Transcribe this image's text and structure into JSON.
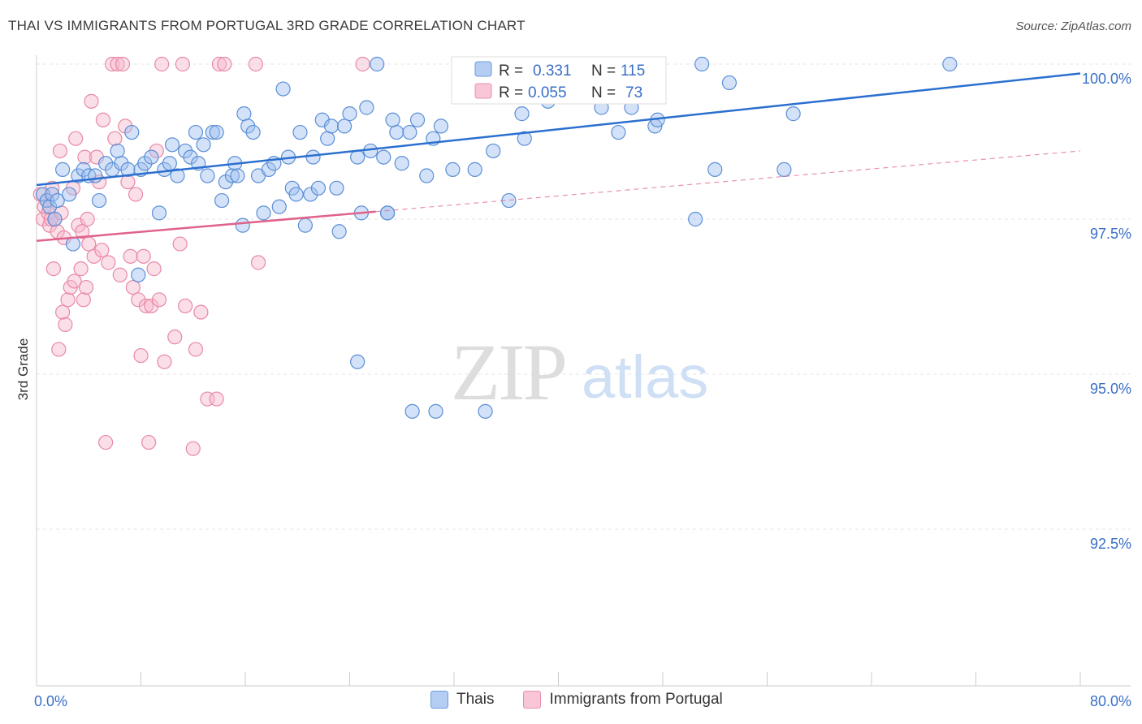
{
  "title": "THAI VS IMMIGRANTS FROM PORTUGAL 3RD GRADE CORRELATION CHART",
  "source": "Source: ZipAtlas.com",
  "watermark": {
    "zip": "ZIP",
    "atlas": "atlas"
  },
  "legend_box": {
    "rows": [
      {
        "r_label": "R =",
        "r_value": "0.331",
        "n_label": "N =",
        "n_value": "115"
      },
      {
        "r_label": "R =",
        "r_value": "0.055",
        "n_label": "N =",
        "n_value": "73"
      }
    ]
  },
  "legend_bottom": {
    "thais": "Thais",
    "portugal": "Immigrants from Portugal"
  },
  "colors": {
    "thais_fill": "#9dbfef",
    "thais_stroke": "#5b8fd6",
    "thais_line": "#2b6fcf",
    "portugal_fill": "#f6b8cb",
    "portugal_stroke": "#e889a6",
    "portugal_line": "#e0628a",
    "axis_text": "#3a6fc8",
    "grid": "#e6e6e6"
  },
  "chart_data": {
    "type": "scatter",
    "title": "THAI VS IMMIGRANTS FROM PORTUGAL 3RD GRADE CORRELATION CHART",
    "xlabel": "",
    "ylabel": "3rd Grade",
    "xlim": [
      0,
      80
    ],
    "ylim": [
      90.0,
      100.5
    ],
    "x_tick_labels": [
      {
        "value": 0,
        "label": "0.0%"
      },
      {
        "value": 80,
        "label": "80.0%"
      }
    ],
    "y_tick_labels": [
      {
        "value": 100.0,
        "label": "100.0%"
      },
      {
        "value": 97.5,
        "label": "97.5%"
      },
      {
        "value": 95.0,
        "label": "95.0%"
      },
      {
        "value": 92.5,
        "label": "92.5%"
      }
    ],
    "grid": true,
    "series": [
      {
        "name": "Thais",
        "trend": [
          [
            0,
            98.05
          ],
          [
            80,
            99.85
          ]
        ],
        "points": [
          [
            0.5,
            97.9
          ],
          [
            0.8,
            97.8
          ],
          [
            1.0,
            97.7
          ],
          [
            1.2,
            97.9
          ],
          [
            1.4,
            97.5
          ],
          [
            1.6,
            97.8
          ],
          [
            2.0,
            98.3
          ],
          [
            2.5,
            97.9
          ],
          [
            2.8,
            97.1
          ],
          [
            3.2,
            98.2
          ],
          [
            3.6,
            98.3
          ],
          [
            4.0,
            98.2
          ],
          [
            4.5,
            98.2
          ],
          [
            4.8,
            97.8
          ],
          [
            5.3,
            98.4
          ],
          [
            5.8,
            98.3
          ],
          [
            6.2,
            98.6
          ],
          [
            6.5,
            98.4
          ],
          [
            7.0,
            98.3
          ],
          [
            7.3,
            98.9
          ],
          [
            7.8,
            96.6
          ],
          [
            8.0,
            98.3
          ],
          [
            8.3,
            98.4
          ],
          [
            8.8,
            98.5
          ],
          [
            9.4,
            97.6
          ],
          [
            9.8,
            98.3
          ],
          [
            10.2,
            98.4
          ],
          [
            10.4,
            98.7
          ],
          [
            10.8,
            98.2
          ],
          [
            11.4,
            98.6
          ],
          [
            11.8,
            98.5
          ],
          [
            12.2,
            98.9
          ],
          [
            12.4,
            98.4
          ],
          [
            12.8,
            98.7
          ],
          [
            13.1,
            98.2
          ],
          [
            13.5,
            98.9
          ],
          [
            13.8,
            98.9
          ],
          [
            14.2,
            97.8
          ],
          [
            14.5,
            98.1
          ],
          [
            15.0,
            98.2
          ],
          [
            15.2,
            98.4
          ],
          [
            15.8,
            97.4
          ],
          [
            15.9,
            99.2
          ],
          [
            16.2,
            99.0
          ],
          [
            16.6,
            98.9
          ],
          [
            17.0,
            98.2
          ],
          [
            17.4,
            97.6
          ],
          [
            17.8,
            98.3
          ],
          [
            18.2,
            98.4
          ],
          [
            18.6,
            97.7
          ],
          [
            18.9,
            99.6
          ],
          [
            19.3,
            98.5
          ],
          [
            19.6,
            98.0
          ],
          [
            19.9,
            97.9
          ],
          [
            20.2,
            98.9
          ],
          [
            20.6,
            97.4
          ],
          [
            21.0,
            97.9
          ],
          [
            21.2,
            98.5
          ],
          [
            21.6,
            98.0
          ],
          [
            21.9,
            99.1
          ],
          [
            22.3,
            98.8
          ],
          [
            22.6,
            99.0
          ],
          [
            23.0,
            98.0
          ],
          [
            23.2,
            97.3
          ],
          [
            23.6,
            99.0
          ],
          [
            24.0,
            99.2
          ],
          [
            24.6,
            98.5
          ],
          [
            24.9,
            97.6
          ],
          [
            25.3,
            99.3
          ],
          [
            25.6,
            98.6
          ],
          [
            26.1,
            100.0
          ],
          [
            26.6,
            98.5
          ],
          [
            26.9,
            97.6
          ],
          [
            27.3,
            99.1
          ],
          [
            27.6,
            98.9
          ],
          [
            28.0,
            98.4
          ],
          [
            28.6,
            98.9
          ],
          [
            29.2,
            99.1
          ],
          [
            29.9,
            98.2
          ],
          [
            30.4,
            98.8
          ],
          [
            31.0,
            99.0
          ],
          [
            31.9,
            98.3
          ],
          [
            32.4,
            100.0
          ],
          [
            32.6,
            99.8
          ],
          [
            33.1,
            100.0
          ],
          [
            33.6,
            98.3
          ],
          [
            34.4,
            99.8
          ],
          [
            35.0,
            98.6
          ],
          [
            35.3,
            99.5
          ],
          [
            36.2,
            97.8
          ],
          [
            37.2,
            99.2
          ],
          [
            37.4,
            98.8
          ],
          [
            38.0,
            100.0
          ],
          [
            39.2,
            99.4
          ],
          [
            39.6,
            99.5
          ],
          [
            40.0,
            100.0
          ],
          [
            41.8,
            100.0
          ],
          [
            43.3,
            99.3
          ],
          [
            44.6,
            98.9
          ],
          [
            45.6,
            99.3
          ],
          [
            47.4,
            99.0
          ],
          [
            47.6,
            99.1
          ],
          [
            50.5,
            97.5
          ],
          [
            51.0,
            100.0
          ],
          [
            52.0,
            98.3
          ],
          [
            53.1,
            99.7
          ],
          [
            57.3,
            98.3
          ],
          [
            58.0,
            99.2
          ],
          [
            70.0,
            100.0
          ],
          [
            24.6,
            95.2
          ],
          [
            28.8,
            94.4
          ],
          [
            30.6,
            94.4
          ],
          [
            34.4,
            94.4
          ],
          [
            26.9,
            97.6
          ],
          [
            15.4,
            98.2
          ]
        ]
      },
      {
        "name": "Immigrants from Portugal",
        "trend": [
          [
            0,
            97.15
          ],
          [
            80,
            98.6
          ]
        ],
        "dashed_from_x": 26,
        "points": [
          [
            0.3,
            97.9
          ],
          [
            0.5,
            97.5
          ],
          [
            0.6,
            97.7
          ],
          [
            0.8,
            97.8
          ],
          [
            0.9,
            97.6
          ],
          [
            1.0,
            97.4
          ],
          [
            1.1,
            97.5
          ],
          [
            1.2,
            98.0
          ],
          [
            1.3,
            96.7
          ],
          [
            1.4,
            97.5
          ],
          [
            1.6,
            97.3
          ],
          [
            1.7,
            95.4
          ],
          [
            1.8,
            98.6
          ],
          [
            1.9,
            97.6
          ],
          [
            2.0,
            96.0
          ],
          [
            2.1,
            97.2
          ],
          [
            2.2,
            95.8
          ],
          [
            2.4,
            96.2
          ],
          [
            2.6,
            96.4
          ],
          [
            2.8,
            98.0
          ],
          [
            2.9,
            96.5
          ],
          [
            3.0,
            98.8
          ],
          [
            3.2,
            97.4
          ],
          [
            3.4,
            96.7
          ],
          [
            3.5,
            97.3
          ],
          [
            3.6,
            96.2
          ],
          [
            3.7,
            98.5
          ],
          [
            3.8,
            96.4
          ],
          [
            3.9,
            97.5
          ],
          [
            4.0,
            97.1
          ],
          [
            4.2,
            99.4
          ],
          [
            4.4,
            96.9
          ],
          [
            4.6,
            98.5
          ],
          [
            4.8,
            98.1
          ],
          [
            5.0,
            97.0
          ],
          [
            5.1,
            99.1
          ],
          [
            5.3,
            93.9
          ],
          [
            5.5,
            96.8
          ],
          [
            5.8,
            100.0
          ],
          [
            6.0,
            98.8
          ],
          [
            6.2,
            100.0
          ],
          [
            6.4,
            96.6
          ],
          [
            6.6,
            100.0
          ],
          [
            6.8,
            99.0
          ],
          [
            7.0,
            98.1
          ],
          [
            7.2,
            96.9
          ],
          [
            7.4,
            96.4
          ],
          [
            7.6,
            97.9
          ],
          [
            7.8,
            96.2
          ],
          [
            8.0,
            95.3
          ],
          [
            8.2,
            96.9
          ],
          [
            8.4,
            96.1
          ],
          [
            8.6,
            93.9
          ],
          [
            8.8,
            96.1
          ],
          [
            9.0,
            96.7
          ],
          [
            9.2,
            98.6
          ],
          [
            9.4,
            96.2
          ],
          [
            9.6,
            100.0
          ],
          [
            9.8,
            95.2
          ],
          [
            10.6,
            95.6
          ],
          [
            11.0,
            97.1
          ],
          [
            11.2,
            100.0
          ],
          [
            11.4,
            96.1
          ],
          [
            12.0,
            93.8
          ],
          [
            12.2,
            95.4
          ],
          [
            12.6,
            96.0
          ],
          [
            13.1,
            94.6
          ],
          [
            13.8,
            94.6
          ],
          [
            14.0,
            100.0
          ],
          [
            14.4,
            100.0
          ],
          [
            16.8,
            100.0
          ],
          [
            17.0,
            96.8
          ],
          [
            25.0,
            100.0
          ]
        ]
      }
    ]
  }
}
